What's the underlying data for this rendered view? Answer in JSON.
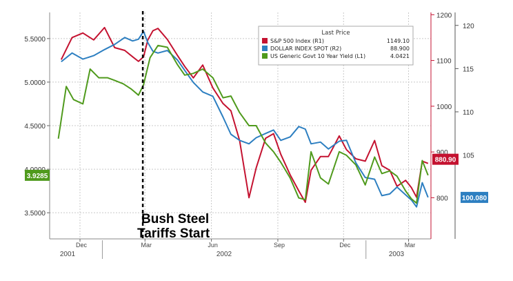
{
  "chart_data": {
    "type": "line",
    "title": "",
    "legend": {
      "title": "Last Price",
      "placement": "top-right",
      "entries": [
        {
          "label": "S&P 500 Index  (R1)",
          "value": "1149.10"
        },
        {
          "label": "DOLLAR INDEX SPOT  (R2)",
          "value": "88.900"
        },
        {
          "label": "US Generic Govt 10 Year Yield  (L1)",
          "value": "4.0421"
        }
      ]
    },
    "annotation": {
      "line1": "Bush Steel",
      "line2": "Tariffs Start"
    },
    "x_axis": {
      "month_ticks": [
        "Dec",
        "Mar",
        "Jun",
        "Sep",
        "Dec",
        "Mar"
      ],
      "year_ticks": [
        "2001",
        "2002",
        "2003"
      ]
    },
    "y_left": {
      "ticks": [
        "3.5000",
        "4.0000",
        "4.5000",
        "5.0000",
        "5.5000"
      ],
      "range": [
        3.2,
        5.8
      ],
      "last_label": "3.9285"
    },
    "y_r1": {
      "ticks": [
        "800",
        "900",
        "1000",
        "1100",
        "1200"
      ],
      "range": [
        710,
        1205
      ],
      "last_label": "880.90"
    },
    "y_r2": {
      "ticks": [
        "105",
        "110",
        "115",
        "120"
      ],
      "range": [
        95.3,
        121.5
      ],
      "last_label": "100.080"
    },
    "grid": true,
    "colors": {
      "sp500": "#c41230",
      "dollar": "#2d7fc1",
      "yield": "#4f9a1c",
      "grid": "#c8c8c8"
    },
    "series": [
      {
        "name": "S&P 500 Index  (R1)",
        "axis": "r1",
        "color": "#c41230",
        "points": [
          [
            "2001-11-05",
            1102
          ],
          [
            "2001-11-20",
            1150
          ],
          [
            "2001-12-05",
            1160
          ],
          [
            "2001-12-20",
            1145
          ],
          [
            "2002-01-04",
            1172
          ],
          [
            "2002-01-18",
            1128
          ],
          [
            "2002-02-01",
            1122
          ],
          [
            "2002-02-12",
            1108
          ],
          [
            "2002-02-20",
            1098
          ],
          [
            "2002-02-27",
            1108
          ],
          [
            "2002-03-05",
            1145
          ],
          [
            "2002-03-12",
            1165
          ],
          [
            "2002-03-19",
            1170
          ],
          [
            "2002-04-01",
            1146
          ],
          [
            "2002-04-15",
            1111
          ],
          [
            "2002-04-25",
            1087
          ],
          [
            "2002-05-07",
            1062
          ],
          [
            "2002-05-20",
            1090
          ],
          [
            "2002-06-03",
            1040
          ],
          [
            "2002-06-17",
            1006
          ],
          [
            "2002-06-28",
            990
          ],
          [
            "2002-07-10",
            925
          ],
          [
            "2002-07-23",
            800
          ],
          [
            "2002-08-02",
            865
          ],
          [
            "2002-08-15",
            930
          ],
          [
            "2002-08-26",
            940
          ],
          [
            "2002-09-05",
            895
          ],
          [
            "2002-09-18",
            850
          ],
          [
            "2002-09-30",
            815
          ],
          [
            "2002-10-09",
            790
          ],
          [
            "2002-10-17",
            860
          ],
          [
            "2002-10-30",
            890
          ],
          [
            "2002-11-10",
            890
          ],
          [
            "2002-11-25",
            935
          ],
          [
            "2002-12-05",
            905
          ],
          [
            "2002-12-18",
            885
          ],
          [
            "2002-12-31",
            880
          ],
          [
            "2003-01-13",
            925
          ],
          [
            "2003-01-23",
            870
          ],
          [
            "2003-02-03",
            860
          ],
          [
            "2003-02-13",
            825
          ],
          [
            "2003-02-25",
            838
          ],
          [
            "2003-03-05",
            822
          ],
          [
            "2003-03-12",
            801
          ],
          [
            "2003-03-20",
            880
          ],
          [
            "2003-03-28",
            875
          ]
        ]
      },
      {
        "name": "DOLLAR INDEX SPOT  (R2)",
        "axis": "r2",
        "color": "#2d7fc1",
        "points": [
          [
            "2001-11-05",
            115.8
          ],
          [
            "2001-11-20",
            116.8
          ],
          [
            "2001-12-05",
            116.1
          ],
          [
            "2001-12-20",
            116.5
          ],
          [
            "2002-01-04",
            117.2
          ],
          [
            "2002-01-18",
            117.8
          ],
          [
            "2002-02-01",
            118.6
          ],
          [
            "2002-02-12",
            118.2
          ],
          [
            "2002-02-20",
            118.4
          ],
          [
            "2002-02-27",
            119.3
          ],
          [
            "2002-03-05",
            118.0
          ],
          [
            "2002-03-12",
            117.0
          ],
          [
            "2002-03-19",
            116.8
          ],
          [
            "2002-04-01",
            117.1
          ],
          [
            "2002-04-15",
            116.0
          ],
          [
            "2002-04-25",
            114.8
          ],
          [
            "2002-05-07",
            113.4
          ],
          [
            "2002-05-20",
            112.3
          ],
          [
            "2002-06-03",
            111.8
          ],
          [
            "2002-06-17",
            109.4
          ],
          [
            "2002-06-28",
            107.4
          ],
          [
            "2002-07-10",
            106.7
          ],
          [
            "2002-07-23",
            106.3
          ],
          [
            "2002-08-02",
            107.0
          ],
          [
            "2002-08-15",
            107.5
          ],
          [
            "2002-08-26",
            107.9
          ],
          [
            "2002-09-05",
            106.7
          ],
          [
            "2002-09-18",
            107.1
          ],
          [
            "2002-09-30",
            108.3
          ],
          [
            "2002-10-09",
            108.0
          ],
          [
            "2002-10-17",
            106.3
          ],
          [
            "2002-10-30",
            106.5
          ],
          [
            "2002-11-10",
            105.7
          ],
          [
            "2002-11-25",
            106.6
          ],
          [
            "2002-12-05",
            106.7
          ],
          [
            "2002-12-18",
            104.1
          ],
          [
            "2002-12-31",
            102.4
          ],
          [
            "2003-01-13",
            102.2
          ],
          [
            "2003-01-23",
            100.3
          ],
          [
            "2003-02-03",
            100.5
          ],
          [
            "2003-02-13",
            101.3
          ],
          [
            "2003-02-25",
            100.4
          ],
          [
            "2003-03-05",
            99.8
          ],
          [
            "2003-03-12",
            99.0
          ],
          [
            "2003-03-20",
            101.8
          ],
          [
            "2003-03-28",
            100.1
          ]
        ]
      },
      {
        "name": "US Generic Govt 10 Year Yield  (L1)",
        "axis": "left",
        "color": "#4f9a1c",
        "points": [
          [
            "2001-11-01",
            4.35
          ],
          [
            "2001-11-12",
            4.95
          ],
          [
            "2001-11-22",
            4.8
          ],
          [
            "2001-12-05",
            4.75
          ],
          [
            "2001-12-15",
            5.15
          ],
          [
            "2001-12-27",
            5.05
          ],
          [
            "2002-01-08",
            5.05
          ],
          [
            "2002-01-18",
            5.02
          ],
          [
            "2002-01-30",
            4.98
          ],
          [
            "2002-02-10",
            4.92
          ],
          [
            "2002-02-20",
            4.85
          ],
          [
            "2002-02-27",
            4.97
          ],
          [
            "2002-03-08",
            5.28
          ],
          [
            "2002-03-19",
            5.42
          ],
          [
            "2002-04-01",
            5.4
          ],
          [
            "2002-04-15",
            5.2
          ],
          [
            "2002-04-25",
            5.08
          ],
          [
            "2002-05-07",
            5.1
          ],
          [
            "2002-05-20",
            5.15
          ],
          [
            "2002-06-03",
            5.05
          ],
          [
            "2002-06-17",
            4.82
          ],
          [
            "2002-06-28",
            4.84
          ],
          [
            "2002-07-10",
            4.65
          ],
          [
            "2002-07-23",
            4.5
          ],
          [
            "2002-08-02",
            4.5
          ],
          [
            "2002-08-15",
            4.3
          ],
          [
            "2002-08-26",
            4.2
          ],
          [
            "2002-09-05",
            4.08
          ],
          [
            "2002-09-18",
            3.9
          ],
          [
            "2002-09-30",
            3.67
          ],
          [
            "2002-10-09",
            3.65
          ],
          [
            "2002-10-17",
            4.2
          ],
          [
            "2002-10-30",
            3.9
          ],
          [
            "2002-11-10",
            3.83
          ],
          [
            "2002-11-25",
            4.2
          ],
          [
            "2002-12-05",
            4.16
          ],
          [
            "2002-12-18",
            4.05
          ],
          [
            "2002-12-31",
            3.82
          ],
          [
            "2003-01-13",
            4.14
          ],
          [
            "2003-01-23",
            3.95
          ],
          [
            "2003-02-03",
            3.98
          ],
          [
            "2003-02-13",
            3.92
          ],
          [
            "2003-02-25",
            3.75
          ],
          [
            "2003-03-05",
            3.66
          ],
          [
            "2003-03-12",
            3.61
          ],
          [
            "2003-03-20",
            4.1
          ],
          [
            "2003-03-28",
            3.93
          ]
        ]
      }
    ]
  }
}
